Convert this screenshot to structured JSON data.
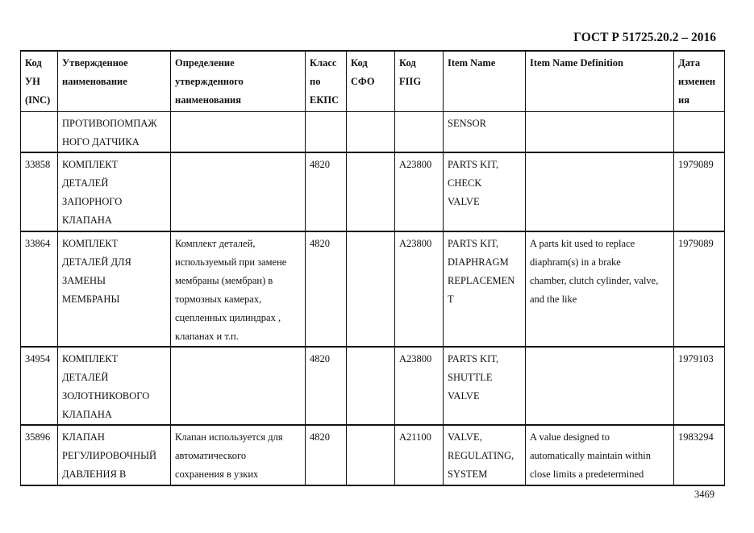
{
  "header": {
    "doc_code": "ГОСТ Р 51725.20.2 – 2016"
  },
  "table": {
    "columns": [
      "Код\nУН\n(INC)",
      "Утвержденное\nнаименование",
      "Определение\nутвержденного\nнаименования",
      "Класс\nпо\nЕКПС",
      "Код\nСФО",
      "Код\nFIIG",
      "Item Name",
      "Item Name Definition",
      "Дата\nизменен\nия"
    ],
    "rows": [
      [
        "",
        "ПРОТИВОПОМПАЖ\nНОГО ДАТЧИКА",
        "",
        "",
        "",
        "",
        "SENSOR",
        "",
        ""
      ],
      [
        "33858",
        "КОМПЛЕКТ\nДЕТАЛЕЙ\nЗАПОРНОГО\nКЛАПАНА",
        "",
        "4820",
        "",
        "A23800",
        "PARTS KIT,\nCHECK\nVALVE",
        "",
        "1979089"
      ],
      [
        "33864",
        "КОМПЛЕКТ\nДЕТАЛЕЙ ДЛЯ\nЗАМЕНЫ\nМЕМБРАНЫ",
        "Комплект деталей,\nиспользуемый при замене\nмембраны (мембран) в\nтормозных камерах,\nсцепленных цилиндрах ,\nклапанах и т.п.",
        "4820",
        "",
        "A23800",
        "PARTS KIT,\nDIAPHRAGM\nREPLACEMEN\nT",
        "A parts kit used to replace\ndiaphram(s) in a brake\nchamber, clutch cylinder, valve,\nand the like",
        "1979089"
      ],
      [
        "34954",
        "КОМПЛЕКТ\nДЕТАЛЕЙ\nЗОЛОТНИКОВОГО\nКЛАПАНА",
        "",
        "4820",
        "",
        "A23800",
        "PARTS KIT,\nSHUTTLE\nVALVE",
        "",
        "1979103"
      ],
      [
        "35896",
        "КЛАПАН\nРЕГУЛИРОВОЧНЫЙ\nДАВЛЕНИЯ В",
        "Клапан используется для\nавтоматического\nсохранения в узких",
        "4820",
        "",
        "A21100",
        "VALVE,\nREGULATING,\nSYSTEM",
        "A value designed to\nautomatically maintain within\nclose limits a predetermined",
        "1983294"
      ]
    ]
  },
  "footer": {
    "page_number": "3469"
  }
}
